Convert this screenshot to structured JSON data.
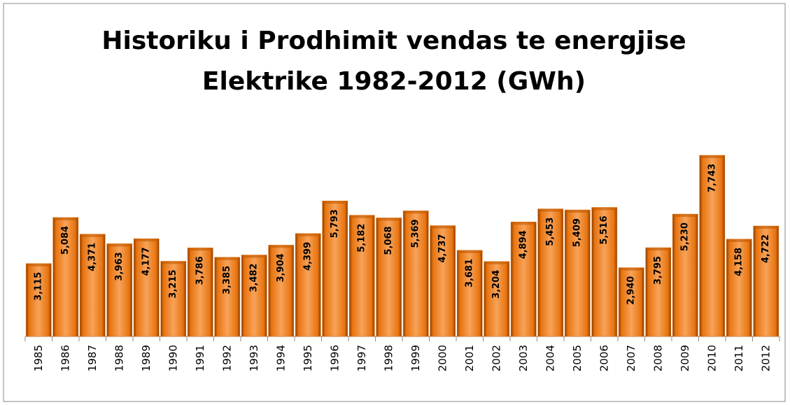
{
  "chart_data": {
    "type": "bar",
    "title": [
      "Historiku i Prodhimit vendas te energjise",
      "Elektrike 1982-2012 (GWh)"
    ],
    "categories": [
      "1985",
      "1986",
      "1987",
      "1988",
      "1989",
      "1990",
      "1991",
      "1992",
      "1993",
      "1994",
      "1995",
      "1996",
      "1997",
      "1998",
      "1999",
      "2000",
      "2001",
      "2002",
      "2003",
      "2004",
      "2005",
      "2006",
      "2007",
      "2008",
      "2009",
      "2010",
      "2011",
      "2012"
    ],
    "values": [
      3115,
      5084,
      4371,
      3963,
      4177,
      3215,
      3786,
      3385,
      3482,
      3904,
      4399,
      5793,
      5182,
      5068,
      5369,
      4737,
      3681,
      3204,
      4894,
      5453,
      5409,
      5516,
      2940,
      3795,
      5230,
      7743,
      4158,
      4722
    ],
    "value_labels": [
      "3,115",
      "5,084",
      "4,371",
      "3,963",
      "4,177",
      "3,215",
      "3,786",
      "3,385",
      "3,482",
      "3,904",
      "4,399",
      "5,793",
      "5,182",
      "5,068",
      "5,369",
      "4,737",
      "3,681",
      "3,204",
      "4,894",
      "5,453",
      "5,409",
      "5,516",
      "2,940",
      "3,795",
      "5,230",
      "7,743",
      "4,158",
      "4,722"
    ],
    "color": "#e8740f"
  }
}
